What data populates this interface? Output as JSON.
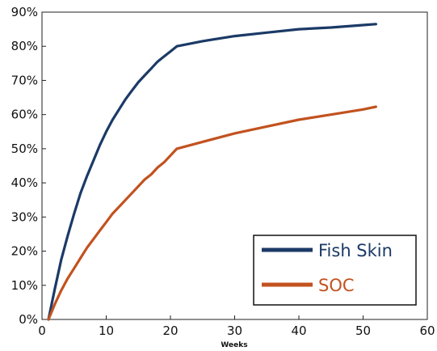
{
  "chart_data": {
    "type": "line",
    "title": "",
    "xlabel": "Weeks",
    "ylabel": "",
    "xlim": [
      0,
      60
    ],
    "ylim": [
      0,
      90
    ],
    "xticks": [
      0,
      10,
      20,
      30,
      40,
      50,
      60
    ],
    "yticks": [
      0,
      10,
      20,
      30,
      40,
      50,
      60,
      70,
      80,
      90
    ],
    "ytick_format": "percent",
    "grid": false,
    "legend_position": "bottom-right",
    "series": [
      {
        "name": "Fish Skin",
        "color": "#1b3a66",
        "x": [
          1,
          2,
          3,
          4,
          5,
          6,
          7,
          8,
          9,
          10,
          11,
          12,
          13,
          14,
          15,
          16,
          17,
          18,
          19,
          20,
          21,
          25,
          30,
          35,
          40,
          45,
          50,
          52
        ],
        "y": [
          0,
          9,
          17.5,
          24.5,
          31,
          37,
          42,
          46.5,
          51,
          55,
          58.5,
          61.5,
          64.5,
          67,
          69.5,
          71.5,
          73.5,
          75.5,
          77,
          78.5,
          80,
          81.5,
          83,
          84,
          85,
          85.5,
          86.2,
          86.5
        ]
      },
      {
        "name": "SOC",
        "color": "#c2521f",
        "x": [
          1,
          2,
          3,
          4,
          5,
          6,
          7,
          8,
          9,
          10,
          11,
          12,
          13,
          14,
          15,
          16,
          17,
          18,
          19,
          20,
          21,
          25,
          30,
          35,
          40,
          45,
          50,
          52
        ],
        "y": [
          0,
          4.5,
          8.5,
          12,
          15,
          18,
          21,
          23.5,
          26,
          28.5,
          31,
          33,
          35,
          37,
          39,
          41,
          42.5,
          44.5,
          46,
          48,
          50,
          52,
          54.5,
          56.5,
          58.5,
          60,
          61.5,
          62.3
        ]
      }
    ]
  }
}
